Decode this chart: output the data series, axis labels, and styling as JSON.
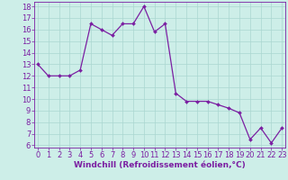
{
  "x": [
    0,
    1,
    2,
    3,
    4,
    5,
    6,
    7,
    8,
    9,
    10,
    11,
    12,
    13,
    14,
    15,
    16,
    17,
    18,
    19,
    20,
    21,
    22,
    23
  ],
  "y": [
    13,
    12,
    12,
    12,
    12.5,
    16.5,
    16,
    15.5,
    16.5,
    16.5,
    18,
    15.8,
    16.5,
    10.5,
    9.8,
    9.8,
    9.8,
    9.5,
    9.2,
    8.8,
    6.5,
    7.5,
    6.2,
    7.5
  ],
  "line_color": "#7b1fa2",
  "marker_color": "#7b1fa2",
  "bg_color": "#cdeee8",
  "grid_color": "#aad6d0",
  "xlabel": "Windchill (Refroidissement éolien,°C)",
  "xlim": [
    0,
    23
  ],
  "ylim": [
    6,
    18
  ],
  "yticks": [
    6,
    7,
    8,
    9,
    10,
    11,
    12,
    13,
    14,
    15,
    16,
    17,
    18
  ],
  "xticks": [
    0,
    1,
    2,
    3,
    4,
    5,
    6,
    7,
    8,
    9,
    10,
    11,
    12,
    13,
    14,
    15,
    16,
    17,
    18,
    19,
    20,
    21,
    22,
    23
  ],
  "tick_color": "#7b1fa2",
  "label_color": "#7b1fa2",
  "axis_color": "#7b1fa2",
  "xlabel_fontsize": 6.5,
  "tick_fontsize": 6,
  "line_width": 0.9,
  "marker_size": 2
}
